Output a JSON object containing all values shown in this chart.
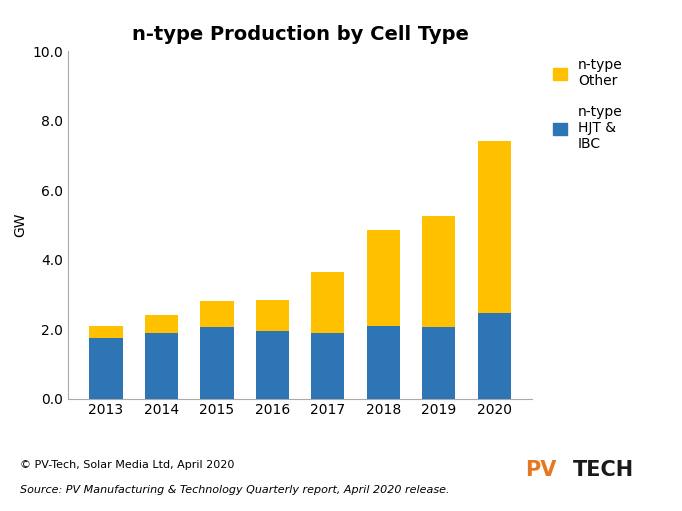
{
  "title": "n-type Production by Cell Type",
  "ylabel": "GW",
  "years": [
    2013,
    2014,
    2015,
    2016,
    2017,
    2018,
    2019,
    2020
  ],
  "hjt_ibc": [
    1.75,
    1.9,
    2.05,
    1.95,
    1.9,
    2.1,
    2.05,
    2.45
  ],
  "other": [
    0.35,
    0.5,
    0.75,
    0.9,
    1.75,
    2.75,
    3.2,
    4.95
  ],
  "color_hjt_ibc": "#2e75b6",
  "color_other": "#ffc000",
  "ylim": [
    0,
    10.0
  ],
  "yticks": [
    0.0,
    2.0,
    4.0,
    6.0,
    8.0,
    10.0
  ],
  "background_color": "#ffffff",
  "legend_hjt_ibc": "n-type\nHJT &\nIBC",
  "legend_other": "n-type\nOther",
  "footnote_line1": "© PV-Tech, Solar Media Ltd, April 2020",
  "footnote_line2": "Source: PV Manufacturing & Technology Quarterly report, April 2020 release.",
  "title_fontsize": 14,
  "axis_fontsize": 10,
  "tick_fontsize": 10,
  "legend_fontsize": 10,
  "footnote_fontsize": 8
}
